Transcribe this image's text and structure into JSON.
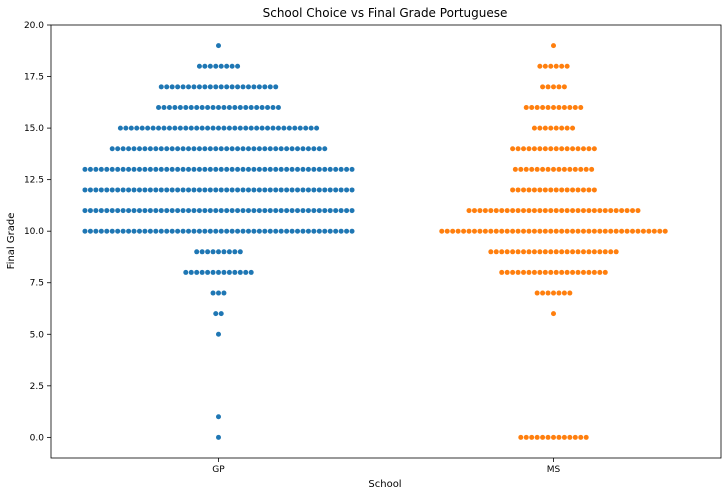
{
  "chart_data": {
    "type": "swarm",
    "title": "School Choice vs Final Grade Portuguese",
    "xlabel": "School",
    "ylabel": "Final Grade",
    "ylim": [
      -1,
      20
    ],
    "yticks": [
      "0.0",
      "2.5",
      "5.0",
      "7.5",
      "10.0",
      "12.5",
      "15.0",
      "17.5",
      "20.0"
    ],
    "categories": [
      "GP",
      "MS"
    ],
    "grid": false,
    "series": [
      {
        "category": "GP",
        "color": "#1f77b4",
        "counts": [
          {
            "y": 0,
            "n": 1
          },
          {
            "y": 1,
            "n": 1
          },
          {
            "y": 5,
            "n": 1
          },
          {
            "y": 6,
            "n": 2
          },
          {
            "y": 7,
            "n": 3
          },
          {
            "y": 8,
            "n": 13
          },
          {
            "y": 9,
            "n": 9
          },
          {
            "y": 10,
            "n": 50
          },
          {
            "y": 11,
            "n": 50
          },
          {
            "y": 12,
            "n": 50
          },
          {
            "y": 13,
            "n": 50
          },
          {
            "y": 14,
            "n": 40
          },
          {
            "y": 15,
            "n": 37
          },
          {
            "y": 16,
            "n": 23
          },
          {
            "y": 17,
            "n": 22
          },
          {
            "y": 18,
            "n": 8
          },
          {
            "y": 19,
            "n": 1
          }
        ]
      },
      {
        "category": "MS",
        "color": "#ff7f0e",
        "counts": [
          {
            "y": 0,
            "n": 13
          },
          {
            "y": 6,
            "n": 1
          },
          {
            "y": 7,
            "n": 7
          },
          {
            "y": 8,
            "n": 20
          },
          {
            "y": 9,
            "n": 24
          },
          {
            "y": 10,
            "n": 42
          },
          {
            "y": 11,
            "n": 32
          },
          {
            "y": 12,
            "n": 16
          },
          {
            "y": 13,
            "n": 15
          },
          {
            "y": 14,
            "n": 16
          },
          {
            "y": 15,
            "n": 8
          },
          {
            "y": 16,
            "n": 11
          },
          {
            "y": 17,
            "n": 5
          },
          {
            "y": 18,
            "n": 6
          },
          {
            "y": 19,
            "n": 1
          }
        ]
      }
    ]
  }
}
